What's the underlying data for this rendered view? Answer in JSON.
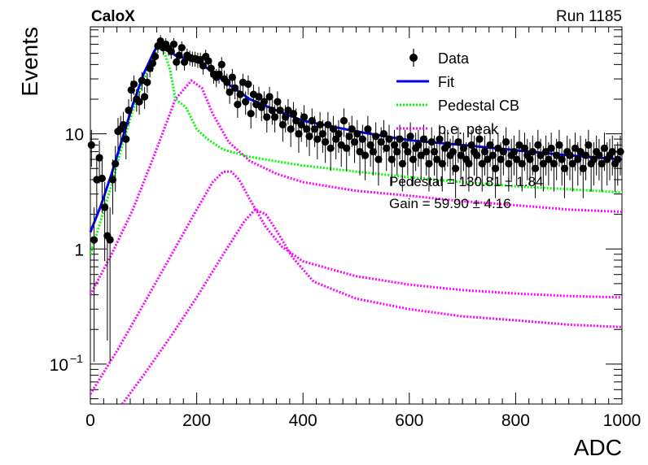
{
  "header": {
    "experiment": "CaloX",
    "run": "Run 1185"
  },
  "chart_data": {
    "type": "scatter",
    "xlabel": "ADC",
    "ylabel": "Events",
    "xlim": [
      0,
      1000
    ],
    "ylim": [
      0.045,
      85
    ],
    "yscale": "log",
    "x_ticks": [
      0,
      200,
      400,
      600,
      800,
      1000
    ],
    "y_ticks": [
      {
        "value": 0.1,
        "base": "10",
        "exp": "−1"
      },
      {
        "value": 1,
        "base": "1",
        "exp": ""
      },
      {
        "value": 10,
        "base": "10",
        "exp": ""
      }
    ],
    "legend_position": "top-right",
    "series": [
      {
        "name": "Data",
        "style": "points-with-errors",
        "color": "#000000"
      },
      {
        "name": "Fit",
        "style": "solid-line",
        "color": "#0000ff"
      },
      {
        "name": "Pedestal CB",
        "style": "dotted-line",
        "color": "#00ff00"
      },
      {
        "name": "p.e. peak",
        "style": "dotted-line",
        "color": "#ff00ff"
      }
    ],
    "annotations": [
      {
        "label": "Pedestal = 130.81 ± 1.84"
      },
      {
        "label": "Gain = 59.90 ± 4.16"
      }
    ],
    "fit_curve": {
      "x": [
        0,
        20,
        40,
        60,
        80,
        100,
        120,
        130,
        140,
        150,
        160,
        180,
        200,
        220,
        250,
        300,
        350,
        400,
        500,
        600,
        700,
        800,
        900,
        1000
      ],
      "y": [
        1.4,
        2.4,
        4.5,
        9.0,
        18,
        33,
        52,
        62,
        58,
        52,
        48,
        45,
        43,
        37,
        29,
        20,
        16,
        13,
        10.5,
        8.8,
        8.0,
        7.2,
        6.5,
        6.0
      ]
    },
    "pedestal_cb": {
      "x": [
        0,
        20,
        40,
        60,
        80,
        100,
        120,
        130,
        140,
        150,
        160,
        180,
        200,
        220,
        250,
        300,
        400,
        500,
        600,
        700,
        800,
        900,
        1000
      ],
      "y": [
        0.9,
        1.8,
        3.6,
        8.0,
        16,
        29,
        48,
        58,
        50,
        36,
        20,
        17,
        11,
        9,
        7.3,
        6.3,
        5.3,
        4.7,
        4.2,
        3.8,
        3.5,
        3.3,
        3.1
      ]
    },
    "pe_peaks": [
      {
        "x": [
          0,
          40,
          80,
          120,
          160,
          190,
          210,
          230,
          260,
          300,
          350,
          400,
          500,
          600,
          700,
          800,
          900,
          1000
        ],
        "y": [
          0.4,
          0.9,
          2.2,
          6.5,
          20,
          29,
          25,
          15,
          8.5,
          5.8,
          4.5,
          3.8,
          3.2,
          2.9,
          2.6,
          2.4,
          2.2,
          2.1
        ]
      },
      {
        "x": [
          0,
          50,
          100,
          150,
          200,
          230,
          250,
          265,
          280,
          300,
          330,
          360,
          400,
          500,
          600,
          700,
          800,
          900,
          1000
        ],
        "y": [
          0.055,
          0.13,
          0.33,
          0.85,
          2.2,
          3.8,
          4.7,
          4.7,
          4.0,
          2.7,
          1.55,
          1.05,
          0.78,
          0.58,
          0.49,
          0.44,
          0.41,
          0.39,
          0.38
        ]
      },
      {
        "x": [
          60,
          100,
          150,
          200,
          250,
          290,
          310,
          330,
          350,
          380,
          420,
          500,
          600,
          700,
          800,
          900,
          1000
        ],
        "y": [
          0.045,
          0.08,
          0.17,
          0.38,
          0.9,
          1.75,
          2.2,
          2.0,
          1.45,
          0.85,
          0.52,
          0.37,
          0.3,
          0.26,
          0.24,
          0.22,
          0.21
        ]
      }
    ],
    "data_points": {
      "x": [
        2,
        7,
        12,
        17,
        22,
        27,
        32,
        37,
        42,
        47,
        52,
        57,
        62,
        67,
        72,
        77,
        82,
        87,
        92,
        97,
        102,
        107,
        112,
        117,
        122,
        127,
        132,
        137,
        142,
        147,
        152,
        157,
        162,
        167,
        172,
        177,
        182,
        187,
        192,
        197,
        202,
        207,
        212,
        217,
        222,
        227,
        232,
        237,
        242,
        247,
        252,
        257,
        262,
        267,
        272,
        277,
        282,
        287,
        292,
        297,
        302,
        307,
        312,
        317,
        322,
        327,
        332,
        337,
        342,
        347,
        352,
        357,
        362,
        367,
        372,
        377,
        382,
        387,
        392,
        397,
        402,
        407,
        412,
        417,
        422,
        427,
        432,
        437,
        442,
        447,
        452,
        457,
        462,
        467,
        472,
        477,
        482,
        487,
        492,
        497,
        502,
        507,
        512,
        517,
        522,
        527,
        532,
        537,
        542,
        547,
        552,
        557,
        562,
        567,
        572,
        577,
        582,
        587,
        592,
        597,
        602,
        607,
        612,
        617,
        622,
        627,
        632,
        637,
        642,
        647,
        652,
        657,
        662,
        667,
        672,
        677,
        682,
        687,
        692,
        697,
        702,
        707,
        712,
        717,
        722,
        727,
        732,
        737,
        742,
        747,
        752,
        757,
        762,
        767,
        772,
        777,
        782,
        787,
        792,
        797,
        802,
        807,
        812,
        817,
        822,
        827,
        832,
        837,
        842,
        847,
        852,
        857,
        862,
        867,
        872,
        877,
        882,
        887,
        892,
        897,
        902,
        907,
        912,
        917,
        922,
        927,
        932,
        937,
        942,
        947,
        952,
        957,
        962,
        967,
        972,
        977,
        982,
        987,
        992,
        997
      ],
      "y": [
        8.0,
        1.2,
        4.0,
        6.2,
        4.1,
        2.3,
        1.3,
        1.2,
        4.0,
        5.5,
        10.5,
        11.0,
        12.0,
        9.0,
        16.0,
        24.0,
        27.0,
        20.0,
        19.0,
        29.0,
        21.0,
        28.0,
        37.0,
        41.0,
        47.0,
        58.0,
        64.0,
        56.0,
        60.0,
        55.0,
        52.0,
        60.0,
        42.0,
        48.0,
        56.0,
        42.0,
        48.0,
        46.0,
        45.0,
        45.0,
        44.0,
        44.0,
        39.0,
        47.0,
        43.0,
        37.0,
        33.0,
        31.0,
        33.0,
        40.0,
        30.0,
        28.0,
        23.0,
        31.0,
        25.0,
        18.0,
        22.0,
        28.0,
        19.0,
        27.0,
        15.0,
        22.0,
        18.0,
        21.0,
        17.0,
        19.0,
        14.0,
        21.0,
        16.0,
        14.0,
        19.0,
        16.0,
        12.0,
        14.0,
        16.0,
        11.0,
        15.0,
        13.0,
        10.0,
        12.0,
        14.0,
        11.0,
        9.5,
        13.0,
        11.0,
        9.0,
        12.0,
        10.0,
        8.5,
        12.0,
        7.5,
        11.0,
        9.0,
        10.0,
        8.0,
        13.0,
        7.5,
        9.5,
        11.0,
        8.5,
        10.0,
        7.0,
        9.0,
        6.5,
        11.0,
        8.0,
        7.0,
        9.5,
        6.0,
        8.5,
        10.0,
        7.5,
        9.0,
        6.0,
        8.0,
        7.0,
        9.0,
        5.5,
        8.0,
        7.0,
        9.5,
        6.0,
        7.5,
        8.0,
        6.5,
        9.0,
        7.0,
        5.5,
        8.5,
        7.0,
        6.0,
        9.0,
        5.5,
        7.5,
        8.0,
        6.5,
        7.0,
        5.0,
        8.5,
        6.5,
        7.5,
        6.0,
        5.5,
        8.0,
        7.0,
        6.5,
        9.0,
        5.5,
        7.0,
        6.0,
        8.0,
        6.5,
        5.0,
        7.5,
        6.0,
        7.0,
        8.5,
        5.5,
        6.5,
        7.0,
        6.0,
        8.0,
        5.5,
        7.5,
        6.5,
        6.0,
        7.0,
        5.0,
        8.0,
        6.5,
        5.5,
        7.0,
        6.0,
        7.5,
        5.5,
        6.5,
        8.0,
        6.0,
        5.0,
        7.0,
        6.5,
        5.5,
        7.5,
        6.0,
        7.0,
        5.0,
        6.5,
        8.0,
        5.5,
        6.0,
        7.0,
        6.5,
        5.5,
        7.5,
        6.0,
        6.5,
        7.0,
        5.5,
        6.0,
        7.0
      ]
    }
  }
}
